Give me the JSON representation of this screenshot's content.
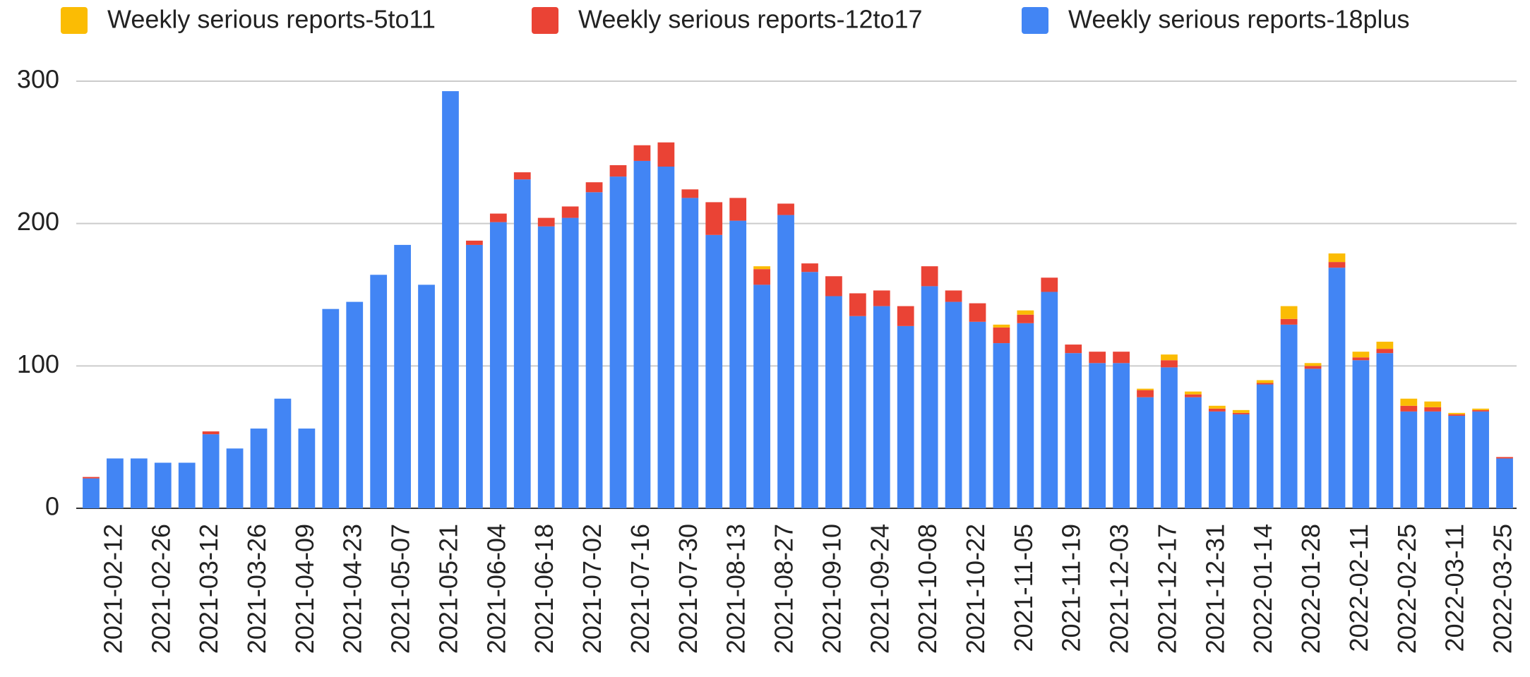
{
  "chart_data": {
    "type": "stacked_bar",
    "legend": "top",
    "grid": true,
    "categories": [
      null,
      "2021-02-12",
      null,
      "2021-02-26",
      null,
      "2021-03-12",
      null,
      "2021-03-26",
      null,
      "2021-04-09",
      null,
      "2021-04-23",
      null,
      "2021-05-07",
      null,
      "2021-05-21",
      null,
      "2021-06-04",
      null,
      "2021-06-18",
      null,
      "2021-07-02",
      null,
      "2021-07-16",
      null,
      "2021-07-30",
      null,
      "2021-08-13",
      null,
      "2021-08-27",
      null,
      "2021-09-10",
      null,
      "2021-09-24",
      null,
      "2021-10-08",
      null,
      "2021-10-22",
      null,
      "2021-11-05",
      null,
      "2021-11-19",
      null,
      "2021-12-03",
      null,
      "2021-12-17",
      null,
      "2021-12-31",
      null,
      "2022-01-14",
      null,
      "2022-01-28",
      null,
      "2022-02-11",
      null,
      "2022-02-25",
      null,
      "2022-03-11",
      null,
      "2022-03-25"
    ],
    "series": [
      {
        "name": "Weekly serious reports-5to11",
        "color": "#fbbc04",
        "values": [
          0,
          0,
          0,
          0,
          0,
          0,
          0,
          0,
          0,
          0,
          0,
          0,
          0,
          0,
          0,
          0,
          0,
          0,
          0,
          0,
          0,
          0,
          0,
          0,
          0,
          0,
          0,
          0,
          2,
          0,
          0,
          0,
          0,
          0,
          0,
          0,
          0,
          0,
          2,
          3,
          0,
          0,
          0,
          0,
          1,
          4,
          2,
          2,
          2,
          2,
          9,
          2,
          6,
          4,
          5,
          5,
          4,
          1,
          1,
          0
        ]
      },
      {
        "name": "Weekly serious reports-12to17",
        "color": "#ea4335",
        "values": [
          1,
          0,
          0,
          0,
          0,
          2,
          0,
          0,
          0,
          0,
          0,
          0,
          0,
          0,
          0,
          0,
          3,
          6,
          5,
          6,
          8,
          7,
          8,
          11,
          17,
          6,
          23,
          16,
          11,
          8,
          6,
          14,
          16,
          11,
          14,
          14,
          8,
          13,
          11,
          6,
          10,
          6,
          8,
          8,
          5,
          5,
          2,
          2,
          1,
          1,
          4,
          2,
          4,
          2,
          3,
          4,
          3,
          1,
          1,
          1
        ]
      },
      {
        "name": "Weekly serious reports-18plus",
        "color": "#4285f4",
        "values": [
          21,
          35,
          35,
          32,
          32,
          52,
          42,
          56,
          77,
          56,
          140,
          145,
          164,
          185,
          157,
          293,
          185,
          201,
          231,
          198,
          204,
          222,
          233,
          244,
          240,
          218,
          192,
          202,
          157,
          206,
          166,
          149,
          135,
          142,
          128,
          156,
          145,
          131,
          116,
          130,
          152,
          109,
          102,
          102,
          78,
          99,
          78,
          68,
          66,
          87,
          129,
          98,
          169,
          104,
          109,
          68,
          68,
          65,
          68,
          35
        ]
      }
    ],
    "ylim": [
      0,
      300
    ],
    "yticks": [
      0,
      100,
      200,
      300
    ]
  }
}
